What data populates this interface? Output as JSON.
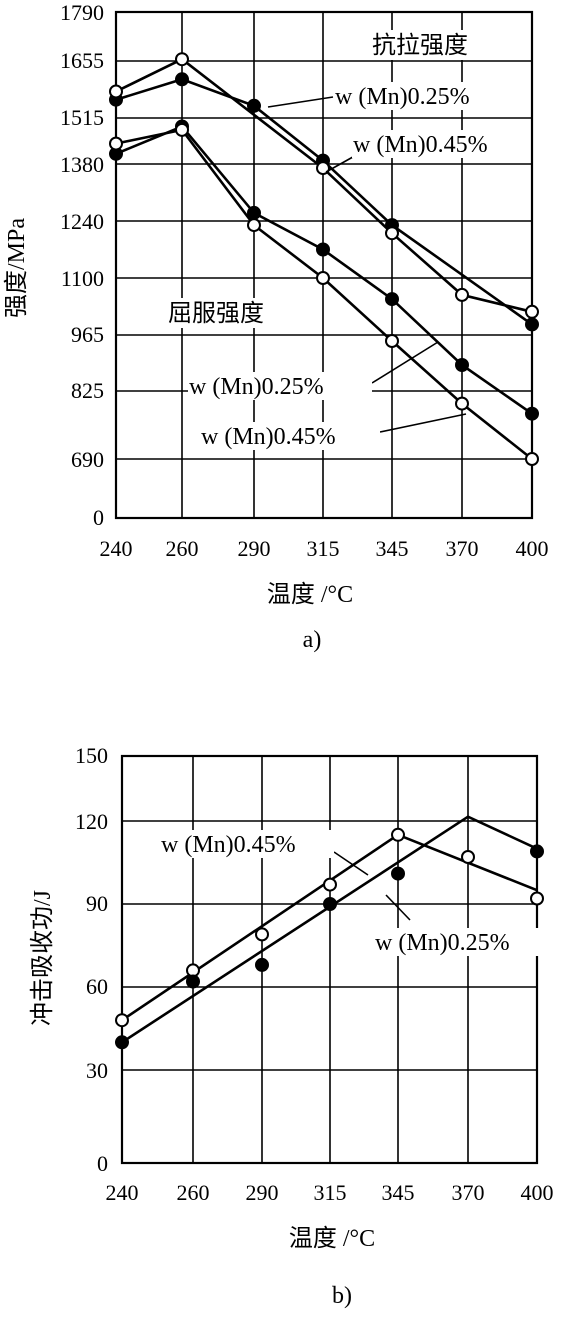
{
  "chart_data": [
    {
      "type": "line",
      "caption": "a)",
      "xlabel": "温度 /°C",
      "ylabel": "强度/MPa",
      "x_ticks": [
        "240",
        "260",
        "290",
        "315",
        "345",
        "370",
        "400"
      ],
      "y_ticks": [
        "0",
        "690",
        "825",
        "965",
        "1100",
        "1240",
        "1380",
        "1515",
        "1655",
        "1790"
      ],
      "grid": true,
      "group_labels": [
        {
          "text": "抗拉强度"
        },
        {
          "text": "屈服强度"
        }
      ],
      "annotations": [
        {
          "text": "w (Mn)0.25%"
        },
        {
          "text": "w (Mn)0.45%"
        },
        {
          "text": "w (Mn)0.25%"
        },
        {
          "text": "w (Mn)0.45%"
        }
      ],
      "series": [
        {
          "marker": "filled",
          "line": true,
          "group": "抗拉强度",
          "points": [
            [
              240,
              1560
            ],
            [
              260,
              1610
            ],
            [
              290,
              1545
            ],
            [
              315,
              1390
            ],
            [
              345,
              1230
            ],
            [
              400,
              990
            ]
          ]
        },
        {
          "marker": "open",
          "line": true,
          "group": "抗拉强度",
          "points": [
            [
              240,
              1580
            ],
            [
              260,
              1660
            ],
            [
              315,
              1370
            ],
            [
              345,
              1210
            ],
            [
              370,
              1060
            ],
            [
              400,
              1020
            ]
          ]
        },
        {
          "marker": "filled",
          "line": true,
          "group": "屈服强度",
          "points": [
            [
              240,
              1410
            ],
            [
              260,
              1490
            ],
            [
              290,
              1260
            ],
            [
              315,
              1170
            ],
            [
              345,
              1050
            ],
            [
              370,
              890
            ],
            [
              400,
              780
            ]
          ]
        },
        {
          "marker": "open",
          "line": true,
          "group": "屈服强度",
          "points": [
            [
              240,
              1440
            ],
            [
              260,
              1480
            ],
            [
              290,
              1230
            ],
            [
              315,
              1100
            ],
            [
              345,
              950
            ],
            [
              370,
              800
            ],
            [
              400,
              690
            ]
          ]
        }
      ]
    },
    {
      "type": "line",
      "caption": "b)",
      "xlabel": "温度 /°C",
      "ylabel": "冲击吸收功/J",
      "x_ticks": [
        "240",
        "260",
        "290",
        "315",
        "345",
        "370",
        "400"
      ],
      "y_ticks": [
        "0",
        "30",
        "60",
        "90",
        "120",
        "150"
      ],
      "grid": true,
      "annotations": [
        {
          "text": "w (Mn)0.45%"
        },
        {
          "text": "w (Mn)0.25%"
        }
      ],
      "series": [
        {
          "marker": "open",
          "label_ref": "w (Mn)0.45%",
          "points": [
            [
              240,
              48
            ],
            [
              260,
              66
            ],
            [
              290,
              79
            ],
            [
              315,
              97
            ],
            [
              345,
              115
            ],
            [
              370,
              107
            ],
            [
              400,
              92
            ]
          ],
          "trend": [
            [
              240,
              48
            ],
            [
              345,
              115
            ],
            [
              400,
              95
            ]
          ]
        },
        {
          "marker": "filled",
          "label_ref": "w (Mn)0.25%",
          "points": [
            [
              240,
              40
            ],
            [
              260,
              62
            ],
            [
              290,
              68
            ],
            [
              315,
              90
            ],
            [
              345,
              101
            ],
            [
              400,
              109
            ]
          ],
          "trend": [
            [
              240,
              40
            ],
            [
              370,
              122
            ],
            [
              400,
              110
            ]
          ]
        }
      ]
    }
  ]
}
